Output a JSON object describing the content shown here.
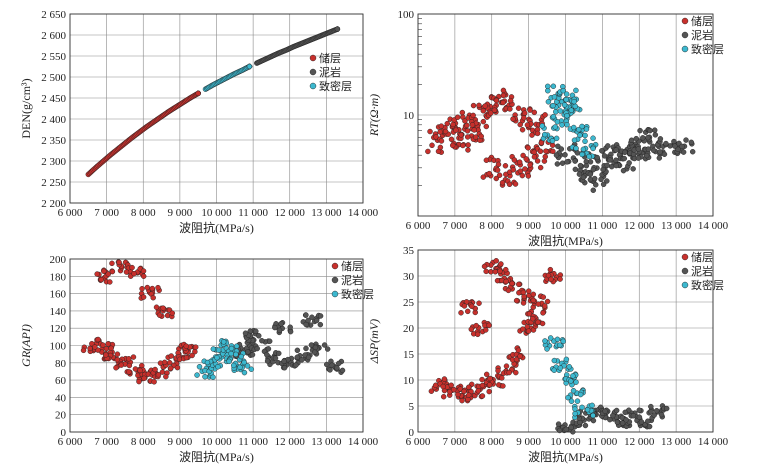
{
  "figure": {
    "legend": [
      "储层",
      "泥岩",
      "致密层"
    ]
  },
  "colors": {
    "储层": "#c8302c",
    "泥岩": "#545454",
    "致密层": "#3cb8cf"
  },
  "chart_data": [
    {
      "type": "scatter",
      "xlabel": "波阻抗(MPa/s)",
      "ylabel": "DEN(g/cm³)",
      "xlim": [
        6000,
        14000
      ],
      "ylim": [
        2.2,
        2.65
      ],
      "x_ticks": [
        "6 000",
        "7 000",
        "8 000",
        "9 000",
        "10 000",
        "11 000",
        "12 000",
        "13 000",
        "14 000"
      ],
      "y_ticks": [
        "2 200",
        "2 250",
        "2 300",
        "2 350",
        "2 400",
        "2 450",
        "2 500",
        "2 550",
        "2 600",
        "2 650"
      ],
      "y_tick_values": [
        2.2,
        2.25,
        2.3,
        2.35,
        2.4,
        2.45,
        2.5,
        2.55,
        2.6,
        2.65
      ],
      "grid": true,
      "legend_position": "right-middle",
      "series": [
        {
          "name": "储层",
          "x": [
            6500,
            6700,
            6900,
            7100,
            7300,
            7500,
            7700,
            7900,
            8100,
            8300,
            8500,
            8700,
            8900,
            9100,
            9300,
            9500
          ],
          "y": [
            2.268,
            2.284,
            2.299,
            2.314,
            2.328,
            2.342,
            2.356,
            2.369,
            2.382,
            2.394,
            2.406,
            2.418,
            2.429,
            2.44,
            2.451,
            2.461
          ]
        },
        {
          "name": "致密层",
          "x": [
            9700,
            9900,
            10100,
            10300,
            10500,
            10700,
            10900
          ],
          "y": [
            2.471,
            2.481,
            2.49,
            2.499,
            2.508,
            2.516,
            2.525
          ]
        },
        {
          "name": "泥岩",
          "x": [
            11100,
            11300,
            11500,
            11700,
            11900,
            12100,
            12300,
            12500,
            12700,
            12900,
            13100,
            13300
          ],
          "y": [
            2.533,
            2.541,
            2.549,
            2.557,
            2.564,
            2.572,
            2.579,
            2.586,
            2.593,
            2.6,
            2.607,
            2.614
          ]
        }
      ]
    },
    {
      "type": "scatter",
      "xlabel": "波阻抗(MPa/s)",
      "ylabel": "RT(Ω·m)",
      "xlim": [
        6000,
        14000
      ],
      "ylim": [
        1,
        100
      ],
      "yscale": "log",
      "x_ticks": [
        "6 000",
        "7 000",
        "8 000",
        "9 000",
        "10 000",
        "11 000",
        "12 000",
        "13 000",
        "14 000"
      ],
      "y_ticks": [
        "10",
        "100"
      ],
      "y_tick_values": [
        10,
        100
      ],
      "grid": true,
      "legend_position": "top-right",
      "series": [
        {
          "name": "储层",
          "x": [
            6500,
            6800,
            7100,
            7400,
            7700,
            8000,
            8300,
            8600,
            8900,
            9200,
            8000,
            8400,
            8800,
            9100,
            9400,
            7200,
            7600
          ],
          "y": [
            5.5,
            6.5,
            7.5,
            8.5,
            10,
            12,
            14,
            11,
            9,
            8,
            3,
            2.6,
            3.2,
            3.8,
            4.5,
            5,
            6.8
          ]
        },
        {
          "name": "泥岩",
          "x": [
            10000,
            10400,
            10800,
            11200,
            11600,
            12000,
            12400,
            12800,
            13200,
            10600,
            11000,
            11400,
            11800,
            12200
          ],
          "y": [
            4,
            3.5,
            3,
            4.2,
            3.6,
            4.5,
            5,
            4.8,
            5.2,
            2.2,
            2.5,
            3.8,
            4.6,
            5.6
          ]
        },
        {
          "name": "致密层",
          "x": [
            9600,
            9800,
            10000,
            10200,
            10400,
            10600,
            9700,
            10100
          ],
          "y": [
            7,
            10,
            12,
            9,
            6,
            5,
            15,
            14
          ]
        }
      ]
    },
    {
      "type": "scatter",
      "xlabel": "波阻抗(MPa/s)",
      "ylabel": "GR(API)",
      "xlim": [
        6000,
        14000
      ],
      "ylim": [
        0,
        200
      ],
      "x_ticks": [
        "6 000",
        "7 000",
        "8 000",
        "9 000",
        "10 000",
        "11 000",
        "12 000",
        "13 000",
        "14 000"
      ],
      "y_ticks": [
        "0",
        "20",
        "40",
        "60",
        "80",
        "100",
        "120",
        "140",
        "160",
        "180",
        "200"
      ],
      "y_tick_values": [
        0,
        20,
        40,
        60,
        80,
        100,
        120,
        140,
        160,
        180,
        200
      ],
      "grid": true,
      "legend_position": "top-right",
      "series": [
        {
          "name": "储层",
          "x": [
            6600,
            6900,
            7200,
            7500,
            7800,
            8100,
            8400,
            8700,
            9000,
            9300,
            7000,
            7400,
            7800,
            8200,
            8600
          ],
          "y": [
            100,
            95,
            88,
            80,
            70,
            65,
            70,
            80,
            90,
            95,
            180,
            190,
            185,
            160,
            140
          ]
        },
        {
          "name": "泥岩",
          "x": [
            10400,
            10800,
            11200,
            11600,
            12000,
            12400,
            12800,
            13200,
            11000,
            11800,
            12600
          ],
          "y": [
            90,
            95,
            100,
            85,
            80,
            90,
            95,
            75,
            110,
            120,
            130
          ]
        },
        {
          "name": "致密层",
          "x": [
            9700,
            9900,
            10100,
            10300,
            10500,
            10700
          ],
          "y": [
            70,
            80,
            90,
            100,
            85,
            75
          ]
        }
      ]
    },
    {
      "type": "scatter",
      "xlabel": "波阻抗(MPa/s)",
      "ylabel": "ΔSP(mV)",
      "xlim": [
        6000,
        14000
      ],
      "ylim": [
        0,
        35
      ],
      "x_ticks": [
        "6 000",
        "7 000",
        "8 000",
        "9 000",
        "10 000",
        "11 000",
        "12 000",
        "13 000",
        "14 000"
      ],
      "y_ticks": [
        "0",
        "5",
        "10",
        "15",
        "20",
        "25",
        "30",
        "35"
      ],
      "y_tick_values": [
        0,
        5,
        10,
        15,
        20,
        25,
        30,
        35
      ],
      "grid": true,
      "legend_position": "top-right",
      "series": [
        {
          "name": "储层",
          "x": [
            6600,
            6900,
            7200,
            7500,
            7800,
            8100,
            8400,
            8700,
            9000,
            9300,
            9600,
            8000,
            8300,
            8600,
            8900,
            9200,
            7400,
            7700
          ],
          "y": [
            9,
            8,
            7,
            8,
            9,
            10,
            12,
            15,
            20,
            25,
            30,
            32,
            30,
            28,
            26,
            22,
            24,
            20
          ]
        },
        {
          "name": "泥岩",
          "x": [
            10000,
            10300,
            10600,
            10900,
            11200,
            11500,
            11800,
            12100,
            12500
          ],
          "y": [
            1,
            2,
            3,
            4,
            3,
            2,
            3,
            2,
            4
          ]
        },
        {
          "name": "致密层",
          "x": [
            9700,
            9900,
            10100,
            10300,
            10500
          ],
          "y": [
            17,
            13,
            10,
            7,
            4
          ]
        }
      ]
    }
  ]
}
